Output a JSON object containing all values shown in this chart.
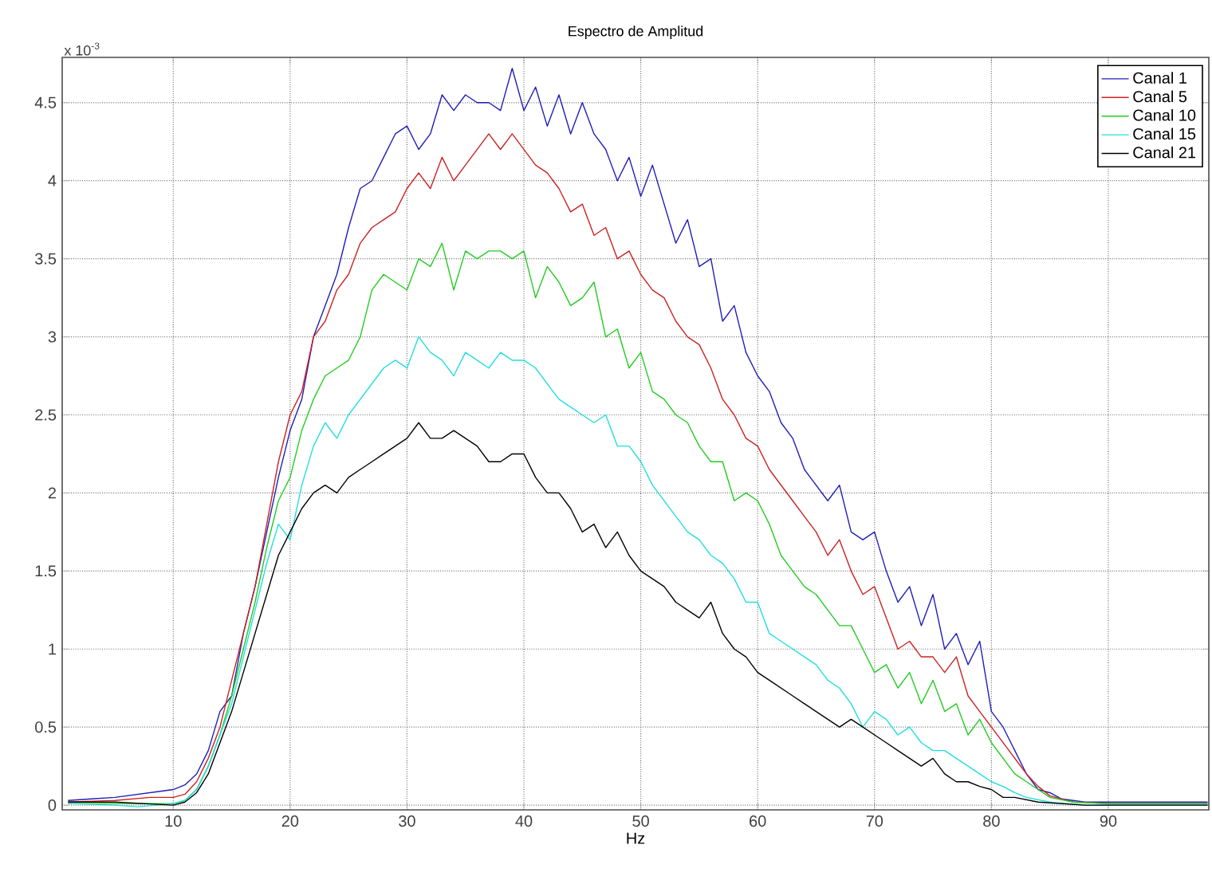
{
  "chart_data": {
    "type": "line",
    "title": "Espectro de Amplitud",
    "xlabel": "Hz",
    "annotations": [
      "x 10$^{-3}$"
    ],
    "xlim": [
      0.5,
      98.6
    ],
    "ylim": [
      -0.03,
      4.79
    ],
    "xticks": [
      10,
      20,
      30,
      40,
      50,
      60,
      70,
      80,
      90
    ],
    "yticks": [
      0,
      0.5,
      1,
      1.5,
      2,
      2.5,
      3,
      3.5,
      4,
      4.5
    ],
    "grid": true,
    "legend": "top right",
    "series": [
      {
        "name": "Canal 1",
        "color": "#1f1fb8",
        "x": [
          1,
          3,
          5,
          7,
          9,
          10,
          11,
          12,
          13,
          14,
          15,
          16,
          17,
          18,
          19,
          20,
          21,
          22,
          23,
          24,
          25,
          26,
          27,
          28,
          29,
          30,
          31,
          32,
          33,
          34,
          35,
          36,
          37,
          38,
          39,
          40,
          41,
          42,
          43,
          44,
          45,
          46,
          47,
          48,
          49,
          50,
          51,
          52,
          53,
          54,
          55,
          56,
          57,
          58,
          59,
          60,
          61,
          62,
          63,
          64,
          65,
          66,
          67,
          68,
          69,
          70,
          71,
          72,
          73,
          74,
          75,
          76,
          77,
          78,
          79,
          80,
          81,
          82,
          83,
          84,
          85,
          86,
          88,
          90,
          95,
          98.5
        ],
        "values": [
          0.03,
          0.04,
          0.05,
          0.07,
          0.09,
          0.1,
          0.13,
          0.2,
          0.35,
          0.6,
          0.7,
          1.1,
          1.4,
          1.75,
          2.1,
          2.4,
          2.6,
          3.0,
          3.2,
          3.4,
          3.7,
          3.95,
          4.0,
          4.15,
          4.3,
          4.35,
          4.2,
          4.3,
          4.55,
          4.45,
          4.55,
          4.5,
          4.5,
          4.45,
          4.72,
          4.45,
          4.6,
          4.35,
          4.55,
          4.3,
          4.5,
          4.3,
          4.2,
          4.0,
          4.15,
          3.9,
          4.1,
          3.85,
          3.6,
          3.75,
          3.45,
          3.5,
          3.1,
          3.2,
          2.9,
          2.75,
          2.65,
          2.45,
          2.35,
          2.15,
          2.05,
          1.95,
          2.05,
          1.75,
          1.7,
          1.75,
          1.5,
          1.3,
          1.4,
          1.15,
          1.35,
          1.0,
          1.1,
          0.9,
          1.05,
          0.6,
          0.5,
          0.35,
          0.2,
          0.1,
          0.08,
          0.04,
          0.02,
          0.02,
          0.02,
          0.02
        ]
      },
      {
        "name": "Canal 5",
        "color": "#cc2222",
        "x": [
          1,
          5,
          8,
          10,
          11,
          12,
          13,
          14,
          15,
          16,
          17,
          18,
          19,
          20,
          21,
          22,
          23,
          24,
          25,
          26,
          27,
          28,
          29,
          30,
          31,
          32,
          33,
          34,
          35,
          36,
          37,
          38,
          39,
          40,
          41,
          42,
          43,
          44,
          45,
          46,
          47,
          48,
          49,
          50,
          51,
          52,
          53,
          54,
          55,
          56,
          57,
          58,
          59,
          60,
          61,
          62,
          63,
          64,
          65,
          66,
          67,
          68,
          69,
          70,
          71,
          72,
          73,
          74,
          75,
          76,
          77,
          78,
          79,
          80,
          81,
          82,
          83,
          84,
          85,
          87,
          90,
          98.5
        ],
        "values": [
          0.02,
          0.03,
          0.05,
          0.05,
          0.07,
          0.15,
          0.3,
          0.5,
          0.8,
          1.1,
          1.4,
          1.8,
          2.2,
          2.5,
          2.65,
          3.0,
          3.1,
          3.3,
          3.4,
          3.6,
          3.7,
          3.75,
          3.8,
          3.95,
          4.05,
          3.95,
          4.15,
          4.0,
          4.1,
          4.2,
          4.3,
          4.2,
          4.3,
          4.2,
          4.1,
          4.05,
          3.95,
          3.8,
          3.85,
          3.65,
          3.7,
          3.5,
          3.55,
          3.4,
          3.3,
          3.25,
          3.1,
          3.0,
          2.95,
          2.8,
          2.6,
          2.5,
          2.35,
          2.3,
          2.15,
          2.05,
          1.95,
          1.85,
          1.75,
          1.6,
          1.7,
          1.5,
          1.35,
          1.4,
          1.2,
          1.0,
          1.05,
          0.95,
          0.95,
          0.85,
          0.95,
          0.7,
          0.6,
          0.5,
          0.4,
          0.3,
          0.2,
          0.12,
          0.06,
          0.02,
          0.01,
          0.01
        ]
      },
      {
        "name": "Canal 10",
        "color": "#22cc22",
        "x": [
          1,
          5,
          10,
          11,
          12,
          13,
          14,
          15,
          16,
          17,
          18,
          19,
          20,
          21,
          22,
          23,
          24,
          25,
          26,
          27,
          28,
          29,
          30,
          31,
          32,
          33,
          34,
          35,
          36,
          37,
          38,
          39,
          40,
          41,
          42,
          43,
          44,
          45,
          46,
          47,
          48,
          49,
          50,
          51,
          52,
          53,
          54,
          55,
          56,
          57,
          58,
          59,
          60,
          61,
          62,
          63,
          64,
          65,
          66,
          67,
          68,
          69,
          70,
          71,
          72,
          73,
          74,
          75,
          76,
          77,
          78,
          79,
          80,
          81,
          82,
          83,
          84,
          85,
          87,
          90,
          98.5
        ],
        "values": [
          0.01,
          0.01,
          0.01,
          0.03,
          0.1,
          0.25,
          0.45,
          0.7,
          1.0,
          1.3,
          1.65,
          1.95,
          2.1,
          2.4,
          2.6,
          2.75,
          2.8,
          2.85,
          3.0,
          3.3,
          3.4,
          3.35,
          3.3,
          3.5,
          3.45,
          3.6,
          3.3,
          3.55,
          3.5,
          3.55,
          3.55,
          3.5,
          3.55,
          3.25,
          3.45,
          3.35,
          3.2,
          3.25,
          3.35,
          3.0,
          3.05,
          2.8,
          2.9,
          2.65,
          2.6,
          2.5,
          2.45,
          2.3,
          2.2,
          2.2,
          1.95,
          2.0,
          1.95,
          1.8,
          1.6,
          1.5,
          1.4,
          1.35,
          1.25,
          1.15,
          1.15,
          1.0,
          0.85,
          0.9,
          0.75,
          0.85,
          0.65,
          0.8,
          0.6,
          0.65,
          0.45,
          0.55,
          0.4,
          0.3,
          0.2,
          0.15,
          0.1,
          0.05,
          0.02,
          0.01,
          0.01
        ]
      },
      {
        "name": "Canal 15",
        "color": "#22dddd",
        "x": [
          1,
          5,
          7,
          10,
          11,
          12,
          13,
          14,
          15,
          16,
          17,
          18,
          19,
          20,
          21,
          22,
          23,
          24,
          25,
          26,
          27,
          28,
          29,
          30,
          31,
          32,
          33,
          34,
          35,
          36,
          37,
          38,
          39,
          40,
          41,
          42,
          43,
          44,
          45,
          46,
          47,
          48,
          49,
          50,
          51,
          52,
          53,
          54,
          55,
          56,
          57,
          58,
          59,
          60,
          61,
          62,
          63,
          64,
          65,
          66,
          67,
          68,
          69,
          70,
          71,
          72,
          73,
          74,
          75,
          76,
          77,
          78,
          79,
          80,
          81,
          82,
          83,
          85,
          88,
          98.5
        ],
        "values": [
          0.01,
          0.0,
          -0.01,
          0.01,
          0.03,
          0.1,
          0.25,
          0.45,
          0.65,
          0.95,
          1.25,
          1.55,
          1.8,
          1.7,
          2.05,
          2.3,
          2.45,
          2.35,
          2.5,
          2.6,
          2.7,
          2.8,
          2.85,
          2.8,
          3.0,
          2.9,
          2.85,
          2.75,
          2.9,
          2.85,
          2.8,
          2.9,
          2.85,
          2.85,
          2.8,
          2.7,
          2.6,
          2.55,
          2.5,
          2.45,
          2.5,
          2.3,
          2.3,
          2.2,
          2.05,
          1.95,
          1.85,
          1.75,
          1.7,
          1.6,
          1.55,
          1.45,
          1.3,
          1.3,
          1.1,
          1.05,
          1.0,
          0.95,
          0.9,
          0.8,
          0.75,
          0.65,
          0.5,
          0.6,
          0.55,
          0.45,
          0.5,
          0.4,
          0.35,
          0.35,
          0.3,
          0.25,
          0.2,
          0.15,
          0.12,
          0.08,
          0.05,
          0.02,
          0.0,
          0.0
        ]
      },
      {
        "name": "Canal 21",
        "color": "#000000",
        "x": [
          1,
          5,
          10,
          11,
          12,
          13,
          14,
          15,
          16,
          17,
          18,
          19,
          20,
          21,
          22,
          23,
          24,
          25,
          26,
          27,
          28,
          29,
          30,
          31,
          32,
          33,
          34,
          35,
          36,
          37,
          38,
          39,
          40,
          41,
          42,
          43,
          44,
          45,
          46,
          47,
          48,
          49,
          50,
          51,
          52,
          53,
          54,
          55,
          56,
          57,
          58,
          59,
          60,
          61,
          62,
          63,
          64,
          65,
          66,
          67,
          68,
          69,
          70,
          71,
          72,
          73,
          74,
          75,
          76,
          77,
          78,
          79,
          80,
          81,
          82,
          84,
          88,
          98.5
        ],
        "values": [
          0.02,
          0.02,
          0.0,
          0.02,
          0.08,
          0.2,
          0.4,
          0.6,
          0.85,
          1.1,
          1.35,
          1.6,
          1.75,
          1.9,
          2.0,
          2.05,
          2.0,
          2.1,
          2.15,
          2.2,
          2.25,
          2.3,
          2.35,
          2.45,
          2.35,
          2.35,
          2.4,
          2.35,
          2.3,
          2.2,
          2.2,
          2.25,
          2.25,
          2.1,
          2.0,
          2.0,
          1.9,
          1.75,
          1.8,
          1.65,
          1.75,
          1.6,
          1.5,
          1.45,
          1.4,
          1.3,
          1.25,
          1.2,
          1.3,
          1.1,
          1.0,
          0.95,
          0.85,
          0.8,
          0.75,
          0.7,
          0.65,
          0.6,
          0.55,
          0.5,
          0.55,
          0.5,
          0.45,
          0.4,
          0.35,
          0.3,
          0.25,
          0.3,
          0.2,
          0.15,
          0.15,
          0.12,
          0.1,
          0.05,
          0.05,
          0.02,
          0.0,
          0.0
        ]
      }
    ]
  }
}
